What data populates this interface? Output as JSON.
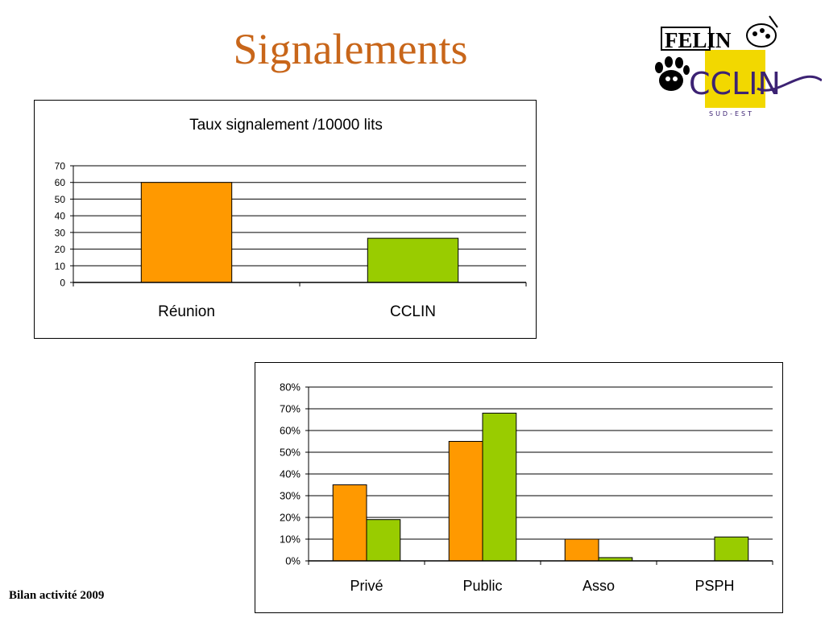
{
  "slide": {
    "title": "Signalements",
    "footer": "Bilan activité 2009"
  },
  "logo": {
    "word": "FELIN",
    "brand": "CCLIN",
    "sub": "SUD-EST",
    "icons": [
      "paw-icon",
      "palette-icon"
    ],
    "colors": {
      "yellow": "#f2d800",
      "purple": "#3c2273"
    }
  },
  "colors": {
    "title": "#c8661a",
    "orange": "#ff9900",
    "green": "#99cc00"
  },
  "chart_data": [
    {
      "type": "bar",
      "title": "Taux signalement /10000 lits",
      "categories": [
        "Réunion",
        "CCLIN"
      ],
      "values": [
        60,
        26.5
      ],
      "bar_colors": [
        "#ff9900",
        "#99cc00"
      ],
      "ylim": [
        0,
        70
      ],
      "yticks": [
        0,
        10,
        20,
        30,
        40,
        50,
        60,
        70
      ],
      "grid": true,
      "legend": "none"
    },
    {
      "type": "bar",
      "title": "",
      "categories": [
        "Privé",
        "Public",
        "Asso",
        "PSPH"
      ],
      "series": [
        {
          "color": "#ff9900",
          "values": [
            0.35,
            0.55,
            0.1,
            0
          ]
        },
        {
          "color": "#99cc00",
          "values": [
            0.19,
            0.68,
            0.015,
            0.11
          ]
        }
      ],
      "ylim": [
        0,
        0.8
      ],
      "yticks": [
        "0%",
        "10%",
        "20%",
        "30%",
        "40%",
        "50%",
        "60%",
        "70%",
        "80%"
      ],
      "grid": true,
      "legend": "none"
    }
  ]
}
